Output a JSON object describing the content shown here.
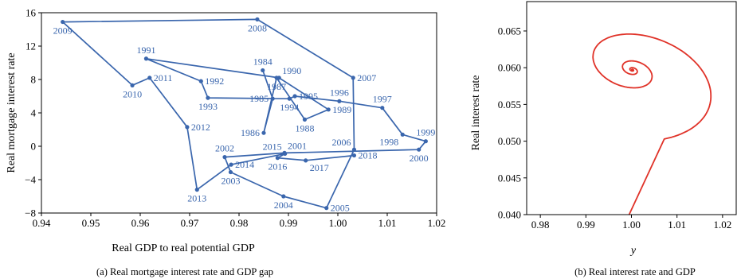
{
  "colors": {
    "blue": "#3a66ad",
    "red": "#e03228",
    "axis": "#000000"
  },
  "chart_data": [
    {
      "type": "line",
      "caption": "(a) Real mortgage interest rate and GDP gap",
      "xlabel": "Real GDP to real potential GDP",
      "ylabel": "Real mortgage interest rate",
      "xlim": [
        0.94,
        1.02
      ],
      "ylim": [
        -8,
        16
      ],
      "xticks": [
        0.94,
        0.95,
        0.96,
        0.97,
        0.98,
        0.99,
        1.0,
        1.01,
        1.02
      ],
      "xtick_labels": [
        "0.94",
        "0.95",
        "0.96",
        "0.97",
        "0.98",
        "0.99",
        "1.00",
        "1.01",
        "1.02"
      ],
      "yticks": [
        -8,
        -4,
        0,
        4,
        8,
        12,
        16
      ],
      "ytick_labels": [
        "−8",
        "−4",
        "0",
        "4",
        "8",
        "12",
        "16"
      ],
      "grid": false,
      "points": [
        {
          "label": "1984",
          "x": 0.9848,
          "y": 9.1,
          "lp": "above"
        },
        {
          "label": "1985",
          "x": 0.9868,
          "y": 5.7,
          "lp": "left"
        },
        {
          "label": "1986",
          "x": 0.985,
          "y": 1.6,
          "lp": "left"
        },
        {
          "label": "1987",
          "x": 0.9876,
          "y": 8.2,
          "lp": "below"
        },
        {
          "label": "1988",
          "x": 0.9933,
          "y": 3.2,
          "lp": "below"
        },
        {
          "label": "1989",
          "x": 0.9981,
          "y": 4.4,
          "lp": "right"
        },
        {
          "label": "1990",
          "x": 0.9881,
          "y": 8.2,
          "lp": "above-right"
        },
        {
          "label": "1991",
          "x": 0.9612,
          "y": 10.5,
          "lp": "above"
        },
        {
          "label": "1992",
          "x": 0.9723,
          "y": 7.8,
          "lp": "right"
        },
        {
          "label": "1993",
          "x": 0.9737,
          "y": 5.8,
          "lp": "below"
        },
        {
          "label": "1994",
          "x": 0.9902,
          "y": 5.7,
          "lp": "below"
        },
        {
          "label": "1995",
          "x": 0.9913,
          "y": 6.0,
          "lp": "right"
        },
        {
          "label": "1996",
          "x": 1.0003,
          "y": 5.4,
          "lp": "above"
        },
        {
          "label": "1997",
          "x": 1.009,
          "y": 4.6,
          "lp": "above"
        },
        {
          "label": "1998",
          "x": 1.0131,
          "y": 1.4,
          "lp": "below-left"
        },
        {
          "label": "1999",
          "x": 1.0178,
          "y": 0.6,
          "lp": "above"
        },
        {
          "label": "2000",
          "x": 1.0164,
          "y": -0.4,
          "lp": "below"
        },
        {
          "label": "2001",
          "x": 0.9892,
          "y": -0.8,
          "lp": "above-right"
        },
        {
          "label": "2002",
          "x": 0.9771,
          "y": -1.3,
          "lp": "above"
        },
        {
          "label": "2003",
          "x": 0.9783,
          "y": -3.1,
          "lp": "below"
        },
        {
          "label": "2004",
          "x": 0.989,
          "y": -6.0,
          "lp": "below"
        },
        {
          "label": "2005",
          "x": 0.9977,
          "y": -7.4,
          "lp": "right"
        },
        {
          "label": "2006",
          "x": 1.0033,
          "y": -0.4,
          "lp": "above-left"
        },
        {
          "label": "2007",
          "x": 1.0031,
          "y": 8.2,
          "lp": "right"
        },
        {
          "label": "2008",
          "x": 0.9837,
          "y": 15.2,
          "lp": "below"
        },
        {
          "label": "2009",
          "x": 0.9443,
          "y": 14.9,
          "lp": "below"
        },
        {
          "label": "2010",
          "x": 0.9584,
          "y": 7.3,
          "lp": "below"
        },
        {
          "label": "2011",
          "x": 0.9619,
          "y": 8.2,
          "lp": "right"
        },
        {
          "label": "2012",
          "x": 0.9695,
          "y": 2.3,
          "lp": "right"
        },
        {
          "label": "2013",
          "x": 0.9715,
          "y": -5.2,
          "lp": "below"
        },
        {
          "label": "2014",
          "x": 0.9784,
          "y": -2.2,
          "lp": "right"
        },
        {
          "label": "2015",
          "x": 0.9893,
          "y": -0.9,
          "lp": "above-left"
        },
        {
          "label": "2016",
          "x": 0.9878,
          "y": -1.4,
          "lp": "below"
        },
        {
          "label": "2017",
          "x": 0.9935,
          "y": -1.7,
          "lp": "below-right"
        },
        {
          "label": "2018",
          "x": 1.0033,
          "y": -1.1,
          "lp": "right"
        }
      ]
    },
    {
      "type": "line",
      "caption": "(b) Real interest rate and GDP",
      "xlabel": "y",
      "ylabel": "Real interest rate",
      "xlim": [
        0.977,
        1.023
      ],
      "ylim": [
        0.04,
        0.069
      ],
      "xticks": [
        0.98,
        0.99,
        1.0,
        1.01,
        1.02
      ],
      "xtick_labels": [
        "0.98",
        "0.99",
        "1.00",
        "1.01",
        "1.02"
      ],
      "yticks": [
        0.04,
        0.045,
        0.05,
        0.055,
        0.06,
        0.065
      ],
      "ytick_labels": [
        "0.040",
        "0.045",
        "0.050",
        "0.055",
        "0.060",
        "0.065"
      ],
      "grid": false,
      "spiral": {
        "start": {
          "x": 0.9995,
          "y": 0.04
        },
        "center": {
          "x": 1.0002,
          "y": 0.0597
        },
        "amplitude_y": 0.0095,
        "amplitude_x": 0.0215,
        "coupling": 0.65,
        "damping": 0.22,
        "turns": 6
      }
    }
  ]
}
